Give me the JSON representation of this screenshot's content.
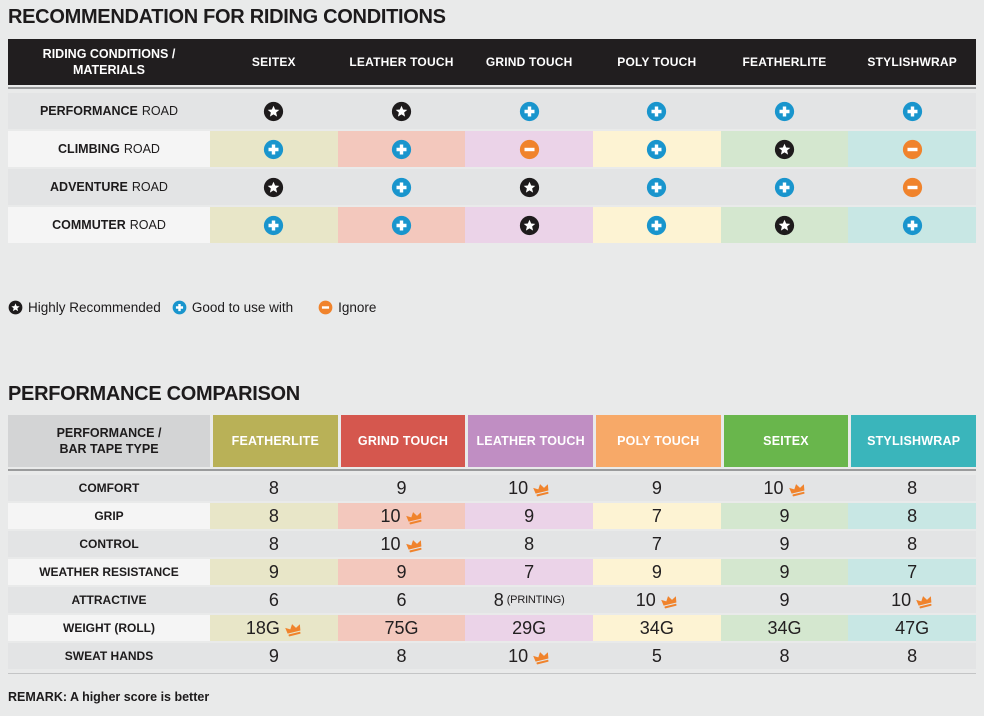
{
  "colors": {
    "page_bg": "#e9eaea",
    "table1_header_bg": "#211e1f",
    "separator": "#9a9b9c",
    "row_plain_bg": "#e3e4e5",
    "row_label_tinted_bg": "#f5f5f5",
    "column_tints": [
      "#e8e6c8",
      "#f3c8bd",
      "#ebd3e8",
      "#fdf3d3",
      "#d4e7cf",
      "#c8e7e4"
    ],
    "icon_star": "#1e1b1c",
    "icon_plus": "#1995cd",
    "icon_minus": "#f0832c",
    "crown": "#f0832c",
    "table2_header_label_bg": "#d3d4d5"
  },
  "section1": {
    "title": "RECOMMENDATION FOR RIDING CONDITIONS",
    "corner_header": "RIDING CONDITIONS / MATERIALS",
    "columns": [
      "SEITEX",
      "LEATHER TOUCH",
      "GRIND TOUCH",
      "POLY TOUCH",
      "FEATHERLITE",
      "STYLISHWRAP"
    ],
    "rows": [
      {
        "label_emphasis": "PERFORMANCE",
        "label_rest": "ROAD",
        "tinted": false,
        "cells": [
          "star",
          "star",
          "plus",
          "plus",
          "plus",
          "plus"
        ]
      },
      {
        "label_emphasis": "CLIMBING",
        "label_rest": "ROAD",
        "tinted": true,
        "cells": [
          "plus",
          "plus",
          "minus",
          "plus",
          "star",
          "minus"
        ]
      },
      {
        "label_emphasis": "ADVENTURE",
        "label_rest": "ROAD",
        "tinted": false,
        "cells": [
          "star",
          "plus",
          "star",
          "plus",
          "plus",
          "minus"
        ]
      },
      {
        "label_emphasis": "COMMUTER",
        "label_rest": "ROAD",
        "tinted": true,
        "cells": [
          "plus",
          "plus",
          "star",
          "plus",
          "star",
          "plus"
        ]
      }
    ],
    "legend": [
      {
        "icon": "star",
        "label": "Highly Recommended"
      },
      {
        "icon": "plus",
        "label": "Good to use with"
      },
      {
        "icon": "minus",
        "label": "Ignore"
      }
    ]
  },
  "section2": {
    "title": "PERFORMANCE COMPARISON",
    "corner_header": "PERFORMANCE / BAR TAPE TYPE",
    "columns": [
      {
        "label": "FEATHERLITE",
        "color": "#b9b157"
      },
      {
        "label": "GRIND TOUCH",
        "color": "#d5574e"
      },
      {
        "label": "LEATHER TOUCH",
        "color": "#c08ec3"
      },
      {
        "label": "POLY TOUCH",
        "color": "#f7a968"
      },
      {
        "label": "SEITEX",
        "color": "#69b64c"
      },
      {
        "label": "STYLISHWRAP",
        "color": "#3ab5bb"
      }
    ],
    "rows": [
      {
        "label": "COMFORT",
        "tinted": false,
        "cells": [
          {
            "value": "8"
          },
          {
            "value": "9"
          },
          {
            "value": "10",
            "crown": true
          },
          {
            "value": "9"
          },
          {
            "value": "10",
            "crown": true
          },
          {
            "value": "8"
          }
        ]
      },
      {
        "label": "GRIP",
        "tinted": true,
        "cells": [
          {
            "value": "8"
          },
          {
            "value": "10",
            "crown": true
          },
          {
            "value": "9"
          },
          {
            "value": "7"
          },
          {
            "value": "9"
          },
          {
            "value": "8"
          }
        ]
      },
      {
        "label": "CONTROL",
        "tinted": false,
        "cells": [
          {
            "value": "8"
          },
          {
            "value": "10",
            "crown": true
          },
          {
            "value": "8"
          },
          {
            "value": "7"
          },
          {
            "value": "9"
          },
          {
            "value": "8"
          }
        ]
      },
      {
        "label": "WEATHER RESISTANCE",
        "tinted": true,
        "cells": [
          {
            "value": "9"
          },
          {
            "value": "9"
          },
          {
            "value": "7"
          },
          {
            "value": "9"
          },
          {
            "value": "9"
          },
          {
            "value": "7"
          }
        ]
      },
      {
        "label": "ATTRACTIVE",
        "tinted": false,
        "cells": [
          {
            "value": "6"
          },
          {
            "value": "6"
          },
          {
            "value": "8",
            "note": "(PRINTING)"
          },
          {
            "value": "10",
            "crown": true
          },
          {
            "value": "9"
          },
          {
            "value": "10",
            "crown": true
          }
        ]
      },
      {
        "label": "WEIGHT (ROLL)",
        "tinted": true,
        "cells": [
          {
            "value": "18G",
            "crown": true
          },
          {
            "value": "75G"
          },
          {
            "value": "29G"
          },
          {
            "value": "34G"
          },
          {
            "value": "34G"
          },
          {
            "value": "47G"
          }
        ]
      },
      {
        "label": "SWEAT HANDS",
        "tinted": false,
        "cells": [
          {
            "value": "9"
          },
          {
            "value": "8"
          },
          {
            "value": "10",
            "crown": true
          },
          {
            "value": "5"
          },
          {
            "value": "8"
          },
          {
            "value": "8"
          }
        ]
      }
    ],
    "remark": "REMARK: A higher score is better"
  }
}
